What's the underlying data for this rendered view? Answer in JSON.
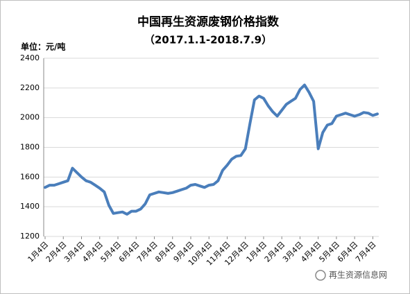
{
  "chart_data": {
    "type": "line",
    "title": "中国再生资源废钢价格指数",
    "subtitle": "（2017.1.1-2018.7.9）",
    "unit_label": "单位：元/吨",
    "watermark": "再生资源信息网",
    "categories": [
      "1月4日",
      null,
      null,
      null,
      "2月4日",
      null,
      null,
      null,
      "3月4日",
      null,
      null,
      null,
      "4月4日",
      null,
      null,
      null,
      "5月4日",
      null,
      null,
      null,
      "6月4日",
      null,
      null,
      null,
      "7月4日",
      null,
      null,
      null,
      "8月4日",
      null,
      null,
      null,
      "9月4日",
      null,
      null,
      null,
      "10月4日",
      null,
      null,
      null,
      "11月4日",
      null,
      null,
      null,
      "12月4日",
      null,
      null,
      null,
      "1月4日",
      null,
      null,
      null,
      "2月4日",
      null,
      null,
      null,
      "3月4日",
      null,
      null,
      null,
      "4月4日",
      null,
      null,
      null,
      "5月4日",
      null,
      null,
      null,
      "6月4日",
      null,
      null,
      null,
      "7月4日",
      null
    ],
    "series": [
      {
        "color": "#4a7ebb",
        "values": [
          1530,
          1545,
          1545,
          1555,
          1565,
          1575,
          1660,
          1630,
          1600,
          1575,
          1565,
          1545,
          1525,
          1500,
          1410,
          1355,
          1360,
          1365,
          1350,
          1370,
          1370,
          1385,
          1420,
          1480,
          1490,
          1500,
          1495,
          1490,
          1495,
          1505,
          1515,
          1525,
          1545,
          1550,
          1540,
          1530,
          1545,
          1550,
          1575,
          1645,
          1680,
          1720,
          1740,
          1745,
          1790,
          1960,
          2120,
          2145,
          2130,
          2080,
          2040,
          2010,
          2050,
          2090,
          2110,
          2130,
          2190,
          2220,
          2170,
          2110,
          1790,
          1900,
          1950,
          1960,
          2010,
          2020,
          2030,
          2020,
          2010,
          2020,
          2035,
          2030,
          2015,
          2025
        ]
      }
    ],
    "ylim": [
      1200,
      2400
    ],
    "yticks": [
      1200,
      1400,
      1600,
      1800,
      2000,
      2200,
      2400
    ],
    "grid": true
  }
}
